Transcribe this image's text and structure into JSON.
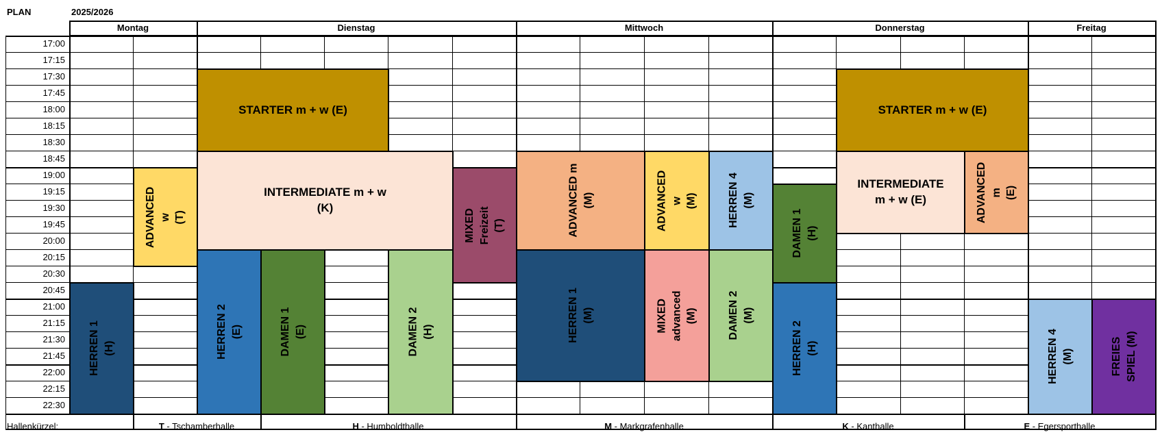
{
  "header": {
    "plan_label": "PLAN",
    "season": "2025/2026"
  },
  "days": [
    "Montag",
    "Dienstag",
    "Mittwoch",
    "Donnerstag",
    "Freitag"
  ],
  "times": [
    "17:00",
    "17:15",
    "17:30",
    "17:45",
    "18:00",
    "18:15",
    "18:30",
    "18:45",
    "19:00",
    "19:15",
    "19:30",
    "19:45",
    "20:00",
    "20:15",
    "20:30",
    "20:45",
    "21:00",
    "21:15",
    "21:30",
    "21:45",
    "22:00",
    "22:15",
    "22:30"
  ],
  "blocks": [
    {
      "id": "mo-herren1",
      "label": "HERREN 1\n(H)",
      "color": "#1f4e79",
      "text_color": "#000000"
    },
    {
      "id": "mo-advanced-w",
      "label": "ADVANCED w\n(T)",
      "color": "#ffd966",
      "text_color": "#000000"
    },
    {
      "id": "di-starter",
      "label": "STARTER m + w (E)",
      "color": "#bf9000",
      "text_color": "#000000"
    },
    {
      "id": "di-intermediate",
      "label": "INTERMEDIATE m + w\n(K)",
      "color": "#fce4d6",
      "text_color": "#000000"
    },
    {
      "id": "di-mixed-freizeit",
      "label": "MIXED Freizeit\n(T)",
      "color": "#9b4b6a",
      "text_color": "#000000"
    },
    {
      "id": "di-herren2",
      "label": "HERREN 2\n(E)",
      "color": "#2e75b6",
      "text_color": "#000000"
    },
    {
      "id": "di-damen1",
      "label": "DAMEN 1\n(E)",
      "color": "#548235",
      "text_color": "#000000"
    },
    {
      "id": "di-damen2",
      "label": "DAMEN 2\n(H)",
      "color": "#a9d18e",
      "text_color": "#000000"
    },
    {
      "id": "mi-advanced-m",
      "label": "ADVANCED m\n(M)",
      "color": "#f4b183",
      "text_color": "#000000"
    },
    {
      "id": "mi-advanced-w",
      "label": "ADVANCED w\n(M)",
      "color": "#ffd966",
      "text_color": "#000000"
    },
    {
      "id": "mi-herren4",
      "label": "HERREN 4\n(M)",
      "color": "#9dc3e6",
      "text_color": "#000000"
    },
    {
      "id": "mi-herren1",
      "label": "HERREN 1\n(M)",
      "color": "#1f4e79",
      "text_color": "#000000"
    },
    {
      "id": "mi-mixed-advanced",
      "label": "MIXED advanced\n(M)",
      "color": "#f4a09a",
      "text_color": "#000000"
    },
    {
      "id": "mi-damen2",
      "label": "DAMEN 2\n(M)",
      "color": "#a9d18e",
      "text_color": "#000000"
    },
    {
      "id": "do-starter",
      "label": "STARTER m + w (E)",
      "color": "#bf9000",
      "text_color": "#000000"
    },
    {
      "id": "do-intermediate",
      "label": "INTERMEDIATE\nm + w (E)",
      "color": "#fce4d6",
      "text_color": "#000000"
    },
    {
      "id": "do-advanced-m",
      "label": "ADVANCED m\n(E)",
      "color": "#f4b183",
      "text_color": "#000000"
    },
    {
      "id": "do-damen1",
      "label": "DAMEN 1\n(H)",
      "color": "#548235",
      "text_color": "#000000"
    },
    {
      "id": "do-herren2",
      "label": "HERREN 2\n(H)",
      "color": "#2e75b6",
      "text_color": "#000000"
    },
    {
      "id": "fr-herren4",
      "label": "HERREN  4 (M)",
      "color": "#9dc3e6",
      "text_color": "#000000"
    },
    {
      "id": "fr-freies-spiel",
      "label": "FREIES SPIEL (M)",
      "color": "#7030a0",
      "text_color": "#000000"
    }
  ],
  "footer": {
    "label": "Hallenkürzel:",
    "halls": [
      {
        "code": "T",
        "name": " - Tschamberhalle"
      },
      {
        "code": "H",
        "name": " - Humboldthalle"
      },
      {
        "code": "M",
        "name": " - Markgrafenhalle"
      },
      {
        "code": "K",
        "name": " - Kanthalle"
      },
      {
        "code": "E",
        "name": " - Egersporthalle"
      }
    ]
  }
}
